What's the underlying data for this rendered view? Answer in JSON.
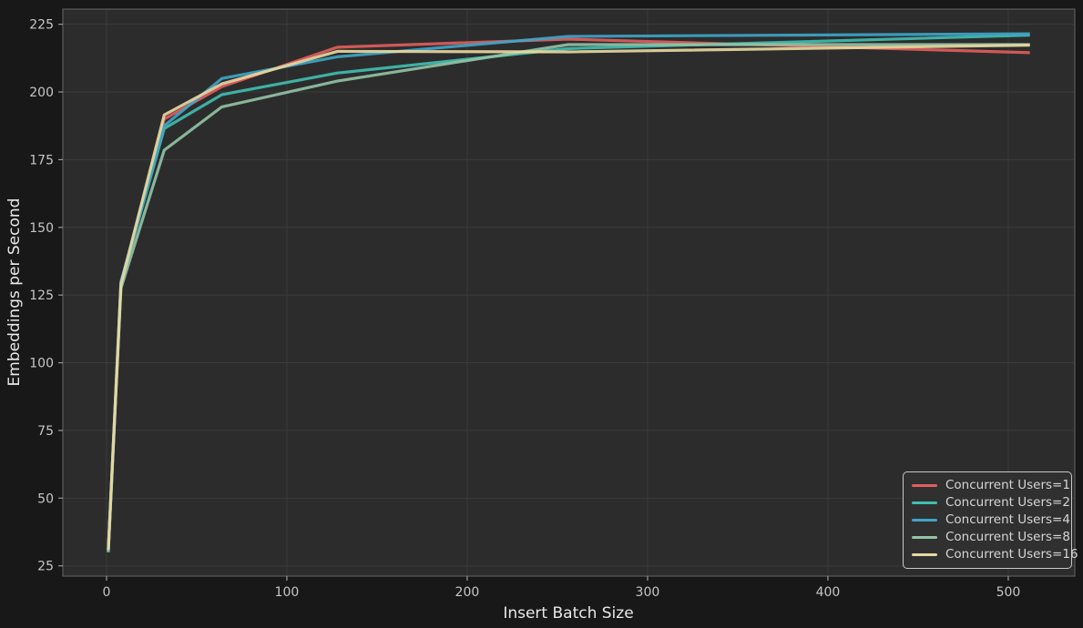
{
  "figure": {
    "background": "#181818",
    "plot_background": "#2c2c2c",
    "grid_color": "#3b3b3b",
    "spine_color": "#5a5a5a",
    "tick_color": "#9a9a9a",
    "tick_label_color": "#c6c6c6",
    "axis_label_color": "#e8e8e8",
    "legend_border_color": "#c9c9c9",
    "legend_text_color": "#d6d6d6"
  },
  "chart_data": {
    "type": "line",
    "title": "",
    "xlabel": "Insert Batch Size",
    "ylabel": "Embeddings per Second",
    "x": [
      1,
      8,
      32,
      64,
      128,
      256,
      512
    ],
    "series": [
      {
        "name": "Concurrent Users=1",
        "color": "#e25e5e",
        "values": [
          30.5,
          128.5,
          190.0,
          202.0,
          216.5,
          219.5,
          214.5
        ]
      },
      {
        "name": "Concurrent Users=2",
        "color": "#40bfb2",
        "values": [
          30.5,
          129.5,
          186.5,
          199.0,
          207.0,
          216.0,
          221.0
        ]
      },
      {
        "name": "Concurrent Users=4",
        "color": "#3fa5c9",
        "values": [
          30.5,
          130.0,
          187.5,
          205.0,
          213.0,
          220.5,
          221.5
        ]
      },
      {
        "name": "Concurrent Users=8",
        "color": "#93c4a6",
        "values": [
          30.0,
          127.5,
          178.5,
          194.5,
          204.0,
          217.5,
          217.5
        ]
      },
      {
        "name": "Concurrent Users=16",
        "color": "#e9d9a1",
        "values": [
          31.0,
          129.0,
          191.5,
          203.0,
          215.0,
          214.8,
          217.3
        ]
      }
    ],
    "xticks": [
      0,
      100,
      200,
      300,
      400,
      500
    ],
    "yticks": [
      25,
      50,
      75,
      100,
      125,
      150,
      175,
      200,
      225
    ],
    "xlim": [
      -24.2,
      536.9
    ],
    "ylim": [
      21.2,
      230.6
    ],
    "grid": true,
    "legend_position": "lower right"
  }
}
